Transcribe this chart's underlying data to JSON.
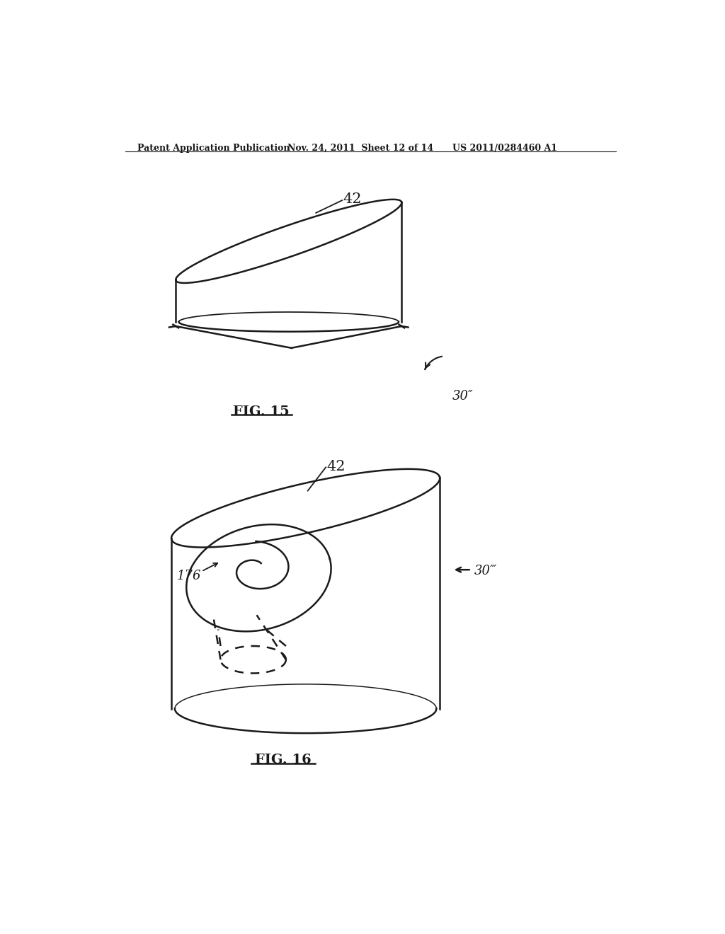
{
  "header_left": "Patent Application Publication",
  "header_mid": "Nov. 24, 2011  Sheet 12 of 14",
  "header_right": "US 2011/0284460 A1",
  "fig15_label": "FIG. 15",
  "fig16_label": "FIG. 16",
  "label_42_fig15": "42",
  "label_30pp": "30″",
  "label_42_fig16": "42",
  "label_176": "176",
  "label_30ppp": "30‴",
  "bg_color": "#ffffff",
  "line_color": "#1a1a1a"
}
